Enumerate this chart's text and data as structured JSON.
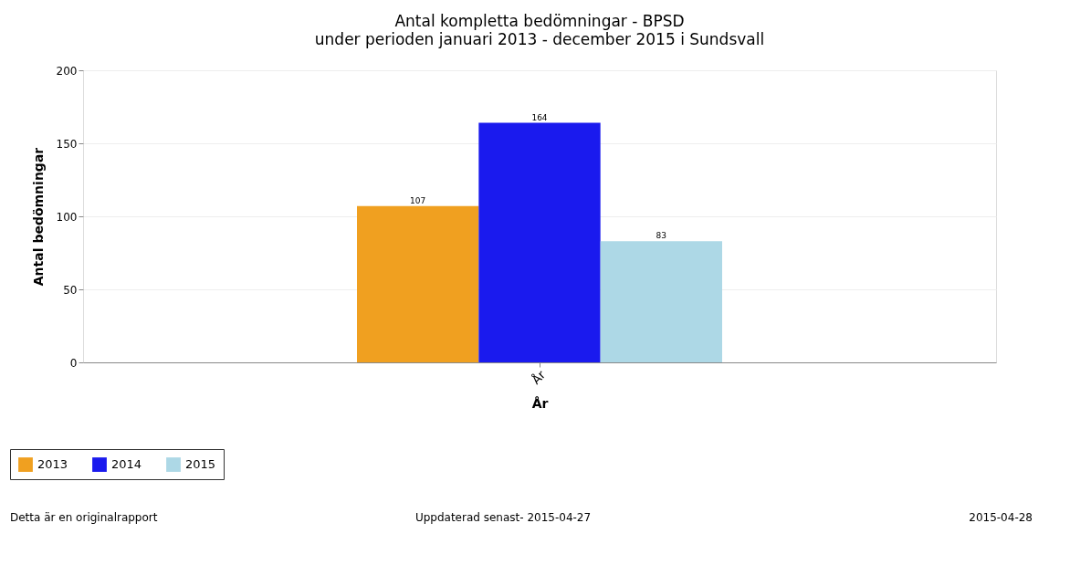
{
  "chart_data": {
    "type": "bar",
    "title": "Antal kompletta bedömningar - BPSD",
    "subtitle": "under perioden januari 2013 - december 2015 i  Sundsvall",
    "xlabel": "År",
    "ylabel": "Antal bedömningar",
    "categories": [
      "År"
    ],
    "series": [
      {
        "name": "2013",
        "color": "#f0a020",
        "values": [
          107
        ]
      },
      {
        "name": "2014",
        "color": "#1a1aee",
        "values": [
          164
        ]
      },
      {
        "name": "2015",
        "color": "#add8e6",
        "values": [
          83
        ]
      }
    ],
    "ylim": [
      0,
      200
    ],
    "yticks": [
      0,
      50,
      100,
      150,
      200
    ],
    "grid": "y",
    "legend": "bottom left",
    "data_labels": true,
    "annotations": [
      "Detta är en originalrapport",
      "Uppdaterad senast- 2015-04-27",
      "2015-04-28"
    ]
  }
}
